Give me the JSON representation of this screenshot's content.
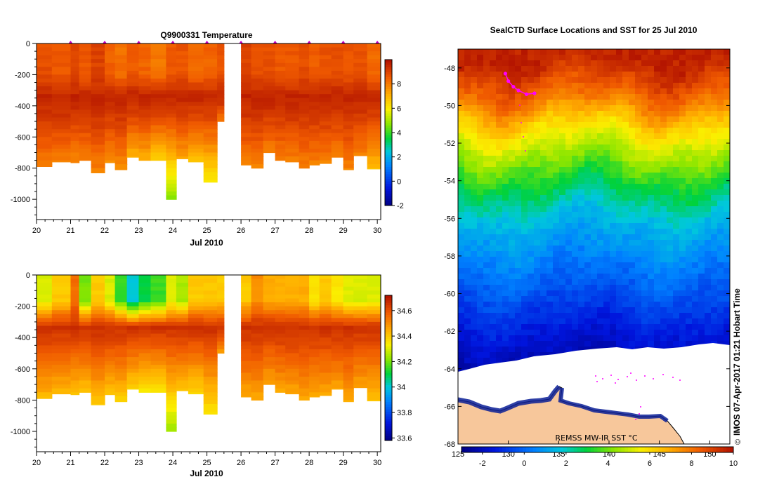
{
  "chart_data": [
    {
      "type": "heatmap",
      "title": "Q9900331  Temperature",
      "xlabel": "Jul 2010",
      "ylabel": "",
      "x_ticks": [
        "20",
        "21",
        "22",
        "23",
        "24",
        "25",
        "26",
        "27",
        "28",
        "29",
        "30"
      ],
      "xlim": [
        20,
        30.1
      ],
      "ylim": [
        -1130,
        0
      ],
      "y_ticks": [
        0,
        -200,
        -400,
        -600,
        -800,
        -1000
      ],
      "colorbar": {
        "min": -2,
        "max": 10,
        "ticks": [
          -2,
          0,
          2,
          4,
          6,
          8
        ],
        "colormap": "jet",
        "units": "°C"
      },
      "profile_days": [
        20.0,
        20.45,
        21.0,
        21.25,
        21.6,
        22.0,
        22.3,
        22.65,
        23.0,
        23.35,
        23.8,
        24.1,
        24.45,
        24.9,
        25.3,
        26.0,
        26.3,
        26.65,
        27.0,
        27.3,
        27.7,
        28.0,
        28.3,
        28.65,
        29.0,
        29.3,
        29.7
      ],
      "profile_ends": [
        20.18,
        20.45,
        21.0,
        21.25,
        21.6,
        22.0,
        22.3,
        22.65,
        23.0,
        23.35,
        23.8,
        24.1,
        24.45,
        24.9,
        25.5,
        26.15,
        26.3,
        26.65,
        27.0,
        27.3,
        27.7,
        28.0,
        28.3,
        28.65,
        29.0,
        29.3,
        29.7
      ],
      "max_depth_m": [
        790,
        760,
        765,
        750,
        830,
        765,
        810,
        730,
        750,
        750,
        1000,
        740,
        760,
        890,
        500,
        780,
        800,
        700,
        750,
        760,
        800,
        780,
        770,
        730,
        810,
        720,
        805
      ],
      "surface_temp_c": [
        8.8,
        8.6,
        8.9,
        8.6,
        9.0,
        8.5,
        8.2,
        8.6,
        8.4,
        8.1,
        8.6,
        8.7,
        8.3,
        8.4,
        8.7,
        9.0,
        8.8,
        8.8,
        8.6,
        8.6,
        8.8,
        8.5,
        8.7,
        8.8,
        8.6,
        8.7,
        8.3
      ],
      "core_temp_c": 9.6,
      "bottom_temp_c": [
        7.8,
        7.9,
        7.7,
        7.8,
        7.8,
        7.6,
        7.6,
        6.9,
        7.0,
        6.4,
        4.4,
        7.2,
        6.6,
        5.8,
        7.8,
        7.8,
        7.8,
        7.8,
        7.8,
        7.8,
        7.8,
        7.8,
        7.8,
        7.8,
        7.8,
        7.8,
        6.8
      ],
      "surface_markers_days": [
        21.0,
        22.0,
        23.0,
        24.0,
        25.0,
        26.0,
        27.0,
        28.0,
        29.0,
        30.0
      ],
      "gap_days": [
        25.5,
        26.0
      ]
    },
    {
      "type": "heatmap",
      "title": "",
      "xlabel": "Jul 2010",
      "ylabel": "",
      "x_ticks": [
        "20",
        "21",
        "22",
        "23",
        "24",
        "25",
        "26",
        "27",
        "28",
        "29",
        "30"
      ],
      "xlim": [
        20,
        30.1
      ],
      "ylim": [
        -1130,
        0
      ],
      "y_ticks": [
        0,
        -200,
        -400,
        -600,
        -800,
        -1000
      ],
      "colorbar": {
        "min": 33.58,
        "max": 34.72,
        "ticks": [
          33.6,
          33.8,
          34,
          34.2,
          34.4,
          34.6
        ],
        "colormap": "jet"
      },
      "surface_sal": [
        34.3,
        34.4,
        34.55,
        34.2,
        34.4,
        34.3,
        34.15,
        34.0,
        34.1,
        34.15,
        34.3,
        34.25,
        34.4,
        34.4,
        34.4,
        34.4,
        34.5,
        34.45,
        34.45,
        34.45,
        34.45,
        34.35,
        34.4,
        34.35,
        34.3,
        34.3,
        34.3
      ],
      "core_sal": 34.66,
      "bottom_sal": [
        34.42,
        34.42,
        34.4,
        34.4,
        34.4,
        34.4,
        34.38,
        34.37,
        34.33,
        34.33,
        34.22,
        34.4,
        34.36,
        34.34,
        34.45,
        34.45,
        34.45,
        34.45,
        34.45,
        34.45,
        34.45,
        34.45,
        34.45,
        34.45,
        34.45,
        34.45,
        34.4
      ]
    },
    {
      "type": "heatmap",
      "title": "SealCTD Surface Locations and SST for 25 Jul 2010",
      "xlabel": "",
      "ylabel": "",
      "x_ticks": [
        "125",
        "130",
        "135",
        "140",
        "145",
        "150"
      ],
      "xlim": [
        125,
        152
      ],
      "y_ticks": [
        "-48",
        "-50",
        "-52",
        "-54",
        "-56",
        "-58",
        "-60",
        "-62",
        "-64",
        "-66",
        "-68"
      ],
      "ylim": [
        -68,
        -47
      ],
      "colorbar": {
        "min": -3,
        "max": 10,
        "ticks": [
          "-2",
          "0",
          "2",
          "4",
          "6",
          "8",
          "10"
        ],
        "colormap": "jet",
        "units": "°C"
      },
      "sst_rows_c": [
        {
          "lat": -47.5,
          "sst": 9.6
        },
        {
          "lat": -49.5,
          "sst": 8.0
        },
        {
          "lat": -51.0,
          "sst": 6.0
        },
        {
          "lat": -52.5,
          "sst": 4.5
        },
        {
          "lat": -54.0,
          "sst": 3.0
        },
        {
          "lat": -56.0,
          "sst": 1.5
        },
        {
          "lat": -58.5,
          "sst": 0.3
        },
        {
          "lat": -61.5,
          "sst": -1.2
        },
        {
          "lat": -63.5,
          "sst": -2.2
        }
      ],
      "seal_track": [
        {
          "lon": 129.7,
          "lat": -48.3
        },
        {
          "lon": 130.0,
          "lat": -48.7
        },
        {
          "lon": 130.5,
          "lat": -49.0
        },
        {
          "lon": 131.0,
          "lat": -49.2
        },
        {
          "lon": 131.8,
          "lat": -49.4
        },
        {
          "lon": 132.6,
          "lat": -49.35
        }
      ],
      "annotation": "REMSS MW-IR SST °C",
      "credit": "IMOS 07-Apr-2017 01:21 Hobart Time",
      "credit_symbol": "©",
      "colors": {
        "land": "#F7C79B",
        "sea_ice": "#FFFFFF",
        "track": "#FF00FF"
      }
    }
  ]
}
